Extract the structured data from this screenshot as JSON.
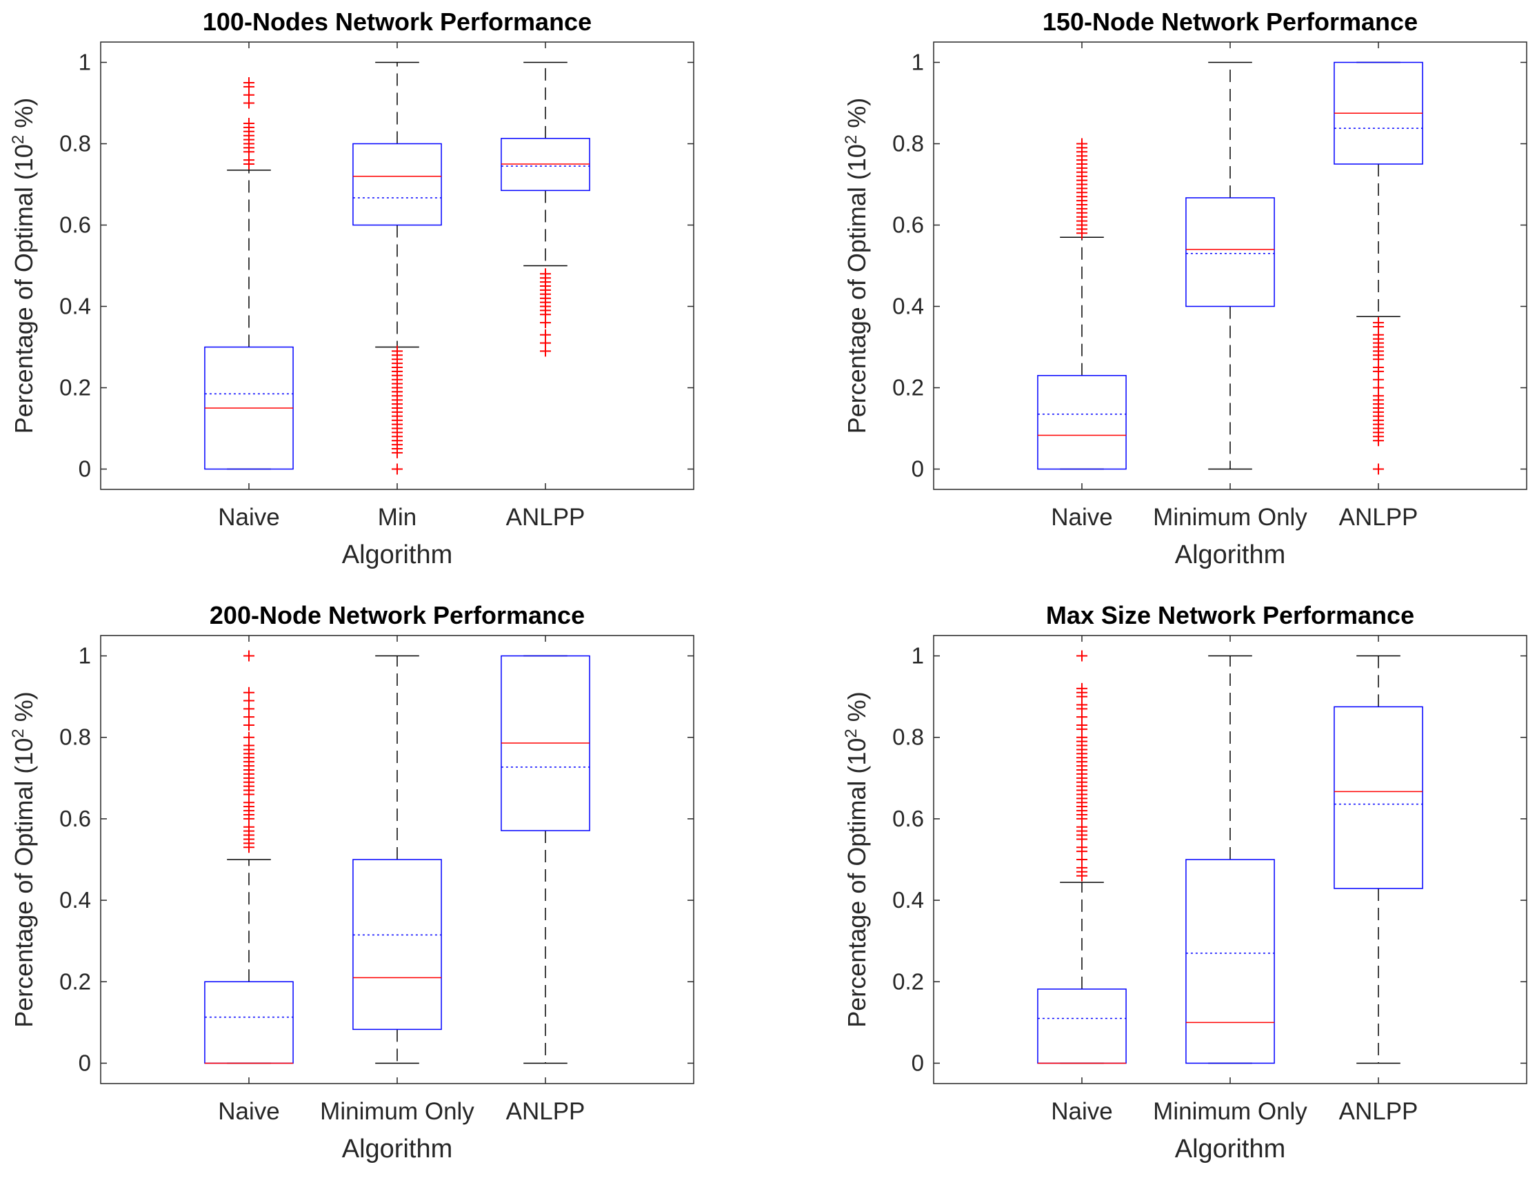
{
  "chart_data": [
    {
      "type": "box",
      "title": "100-Nodes Network Performance",
      "xlabel": "Algorithm",
      "ylabel_main": "Percentage of Optimal (10",
      "ylabel_sup": "2",
      "ylabel_end": " %)",
      "ylim": [
        -0.05,
        1.05
      ],
      "yticks": [
        0,
        0.2,
        0.4,
        0.6,
        0.8,
        1
      ],
      "ytick_labels": [
        "0",
        "0.2",
        "0.4",
        "0.6",
        "0.8",
        "1"
      ],
      "categories": [
        "Naive",
        "Min",
        "ANLPP"
      ],
      "boxes": [
        {
          "q1": 0.0,
          "median": 0.15,
          "q3": 0.3,
          "mean": 0.185,
          "whisker_low": 0.0,
          "whisker_high": 0.735,
          "outliers": [
            0.75,
            0.76,
            0.78,
            0.79,
            0.8,
            0.81,
            0.82,
            0.83,
            0.84,
            0.85,
            0.9,
            0.92,
            0.94,
            0.95
          ]
        },
        {
          "q1": 0.6,
          "median": 0.72,
          "q3": 0.8,
          "mean": 0.667,
          "whisker_low": 0.3,
          "whisker_high": 1.0,
          "outliers": [
            0.0,
            0.04,
            0.05,
            0.06,
            0.07,
            0.08,
            0.09,
            0.1,
            0.11,
            0.12,
            0.13,
            0.14,
            0.15,
            0.16,
            0.17,
            0.18,
            0.19,
            0.2,
            0.21,
            0.22,
            0.23,
            0.24,
            0.25,
            0.26,
            0.27,
            0.28,
            0.29
          ]
        },
        {
          "q1": 0.685,
          "median": 0.75,
          "q3": 0.813,
          "mean": 0.745,
          "whisker_low": 0.5,
          "whisker_high": 1.0,
          "outliers": [
            0.29,
            0.31,
            0.33,
            0.36,
            0.38,
            0.39,
            0.4,
            0.41,
            0.42,
            0.43,
            0.44,
            0.45,
            0.46,
            0.47,
            0.48
          ]
        }
      ]
    },
    {
      "type": "box",
      "title": "150-Node Network Performance",
      "xlabel": "Algorithm",
      "ylabel_main": "Percentage of Optimal (10",
      "ylabel_sup": "2",
      "ylabel_end": " %)",
      "ylim": [
        -0.05,
        1.05
      ],
      "yticks": [
        0,
        0.2,
        0.4,
        0.6,
        0.8,
        1
      ],
      "ytick_labels": [
        "0",
        "0.2",
        "0.4",
        "0.6",
        "0.8",
        "1"
      ],
      "categories": [
        "Naive",
        "Minimum Only",
        "ANLPP"
      ],
      "boxes": [
        {
          "q1": 0.0,
          "median": 0.083,
          "q3": 0.23,
          "mean": 0.135,
          "whisker_low": 0.0,
          "whisker_high": 0.57,
          "outliers": [
            0.58,
            0.59,
            0.6,
            0.61,
            0.62,
            0.63,
            0.64,
            0.65,
            0.66,
            0.67,
            0.68,
            0.69,
            0.7,
            0.71,
            0.72,
            0.73,
            0.74,
            0.75,
            0.76,
            0.77,
            0.78,
            0.79,
            0.8
          ]
        },
        {
          "q1": 0.4,
          "median": 0.54,
          "q3": 0.667,
          "mean": 0.53,
          "whisker_low": 0.0,
          "whisker_high": 1.0,
          "outliers": []
        },
        {
          "q1": 0.75,
          "median": 0.875,
          "q3": 1.0,
          "mean": 0.838,
          "whisker_low": 0.375,
          "whisker_high": 1.0,
          "outliers": [
            0.0,
            0.07,
            0.08,
            0.09,
            0.1,
            0.11,
            0.12,
            0.13,
            0.14,
            0.15,
            0.16,
            0.17,
            0.18,
            0.2,
            0.22,
            0.24,
            0.25,
            0.27,
            0.28,
            0.29,
            0.3,
            0.31,
            0.32,
            0.33,
            0.35,
            0.36
          ]
        }
      ]
    },
    {
      "type": "box",
      "title": "200-Node Network Performance",
      "xlabel": "Algorithm",
      "ylabel_main": "Percentage of Optimal (10",
      "ylabel_sup": "2",
      "ylabel_end": " %)",
      "ylim": [
        -0.05,
        1.05
      ],
      "yticks": [
        0,
        0.2,
        0.4,
        0.6,
        0.8,
        1
      ],
      "ytick_labels": [
        "0",
        "0.2",
        "0.4",
        "0.6",
        "0.8",
        "1"
      ],
      "categories": [
        "Naive",
        "Minimum Only",
        "ANLPP"
      ],
      "boxes": [
        {
          "q1": 0.0,
          "median": 0.0,
          "q3": 0.2,
          "mean": 0.113,
          "whisker_low": 0.0,
          "whisker_high": 0.5,
          "outliers": [
            0.53,
            0.54,
            0.55,
            0.56,
            0.57,
            0.58,
            0.6,
            0.61,
            0.62,
            0.63,
            0.64,
            0.66,
            0.67,
            0.68,
            0.69,
            0.7,
            0.71,
            0.72,
            0.73,
            0.74,
            0.75,
            0.76,
            0.77,
            0.78,
            0.8,
            0.83,
            0.85,
            0.87,
            0.89,
            0.91,
            1.0
          ]
        },
        {
          "q1": 0.083,
          "median": 0.21,
          "q3": 0.5,
          "mean": 0.315,
          "whisker_low": 0.0,
          "whisker_high": 1.0,
          "outliers": []
        },
        {
          "q1": 0.571,
          "median": 0.786,
          "q3": 1.0,
          "mean": 0.727,
          "whisker_low": 0.0,
          "whisker_high": 1.0,
          "outliers": []
        }
      ]
    },
    {
      "type": "box",
      "title": "Max Size Network Performance",
      "xlabel": "Algorithm",
      "ylabel_main": "Percentage of Optimal (10",
      "ylabel_sup": "2",
      "ylabel_end": " %)",
      "ylim": [
        -0.05,
        1.05
      ],
      "yticks": [
        0,
        0.2,
        0.4,
        0.6,
        0.8,
        1
      ],
      "ytick_labels": [
        "0",
        "0.2",
        "0.4",
        "0.6",
        "0.8",
        "1"
      ],
      "categories": [
        "Naive",
        "Minimum Only",
        "ANLPP"
      ],
      "boxes": [
        {
          "q1": 0.0,
          "median": 0.0,
          "q3": 0.182,
          "mean": 0.11,
          "whisker_low": 0.0,
          "whisker_high": 0.444,
          "outliers": [
            0.46,
            0.47,
            0.48,
            0.5,
            0.52,
            0.53,
            0.55,
            0.56,
            0.57,
            0.58,
            0.6,
            0.61,
            0.62,
            0.63,
            0.64,
            0.65,
            0.66,
            0.67,
            0.68,
            0.69,
            0.7,
            0.71,
            0.72,
            0.73,
            0.74,
            0.75,
            0.76,
            0.77,
            0.78,
            0.79,
            0.8,
            0.82,
            0.83,
            0.85,
            0.87,
            0.88,
            0.9,
            0.91,
            0.92,
            1.0
          ]
        },
        {
          "q1": 0.0,
          "median": 0.1,
          "q3": 0.5,
          "mean": 0.27,
          "whisker_low": 0.0,
          "whisker_high": 1.0,
          "outliers": []
        },
        {
          "q1": 0.429,
          "median": 0.667,
          "q3": 0.875,
          "mean": 0.636,
          "whisker_low": 0.0,
          "whisker_high": 1.0,
          "outliers": []
        }
      ]
    }
  ],
  "colors": {
    "box": "#0000ff",
    "median": "#ff0000",
    "mean": "#0000ff",
    "outlier": "#ff0000",
    "whisker": "#000000",
    "axes": "#262626"
  }
}
